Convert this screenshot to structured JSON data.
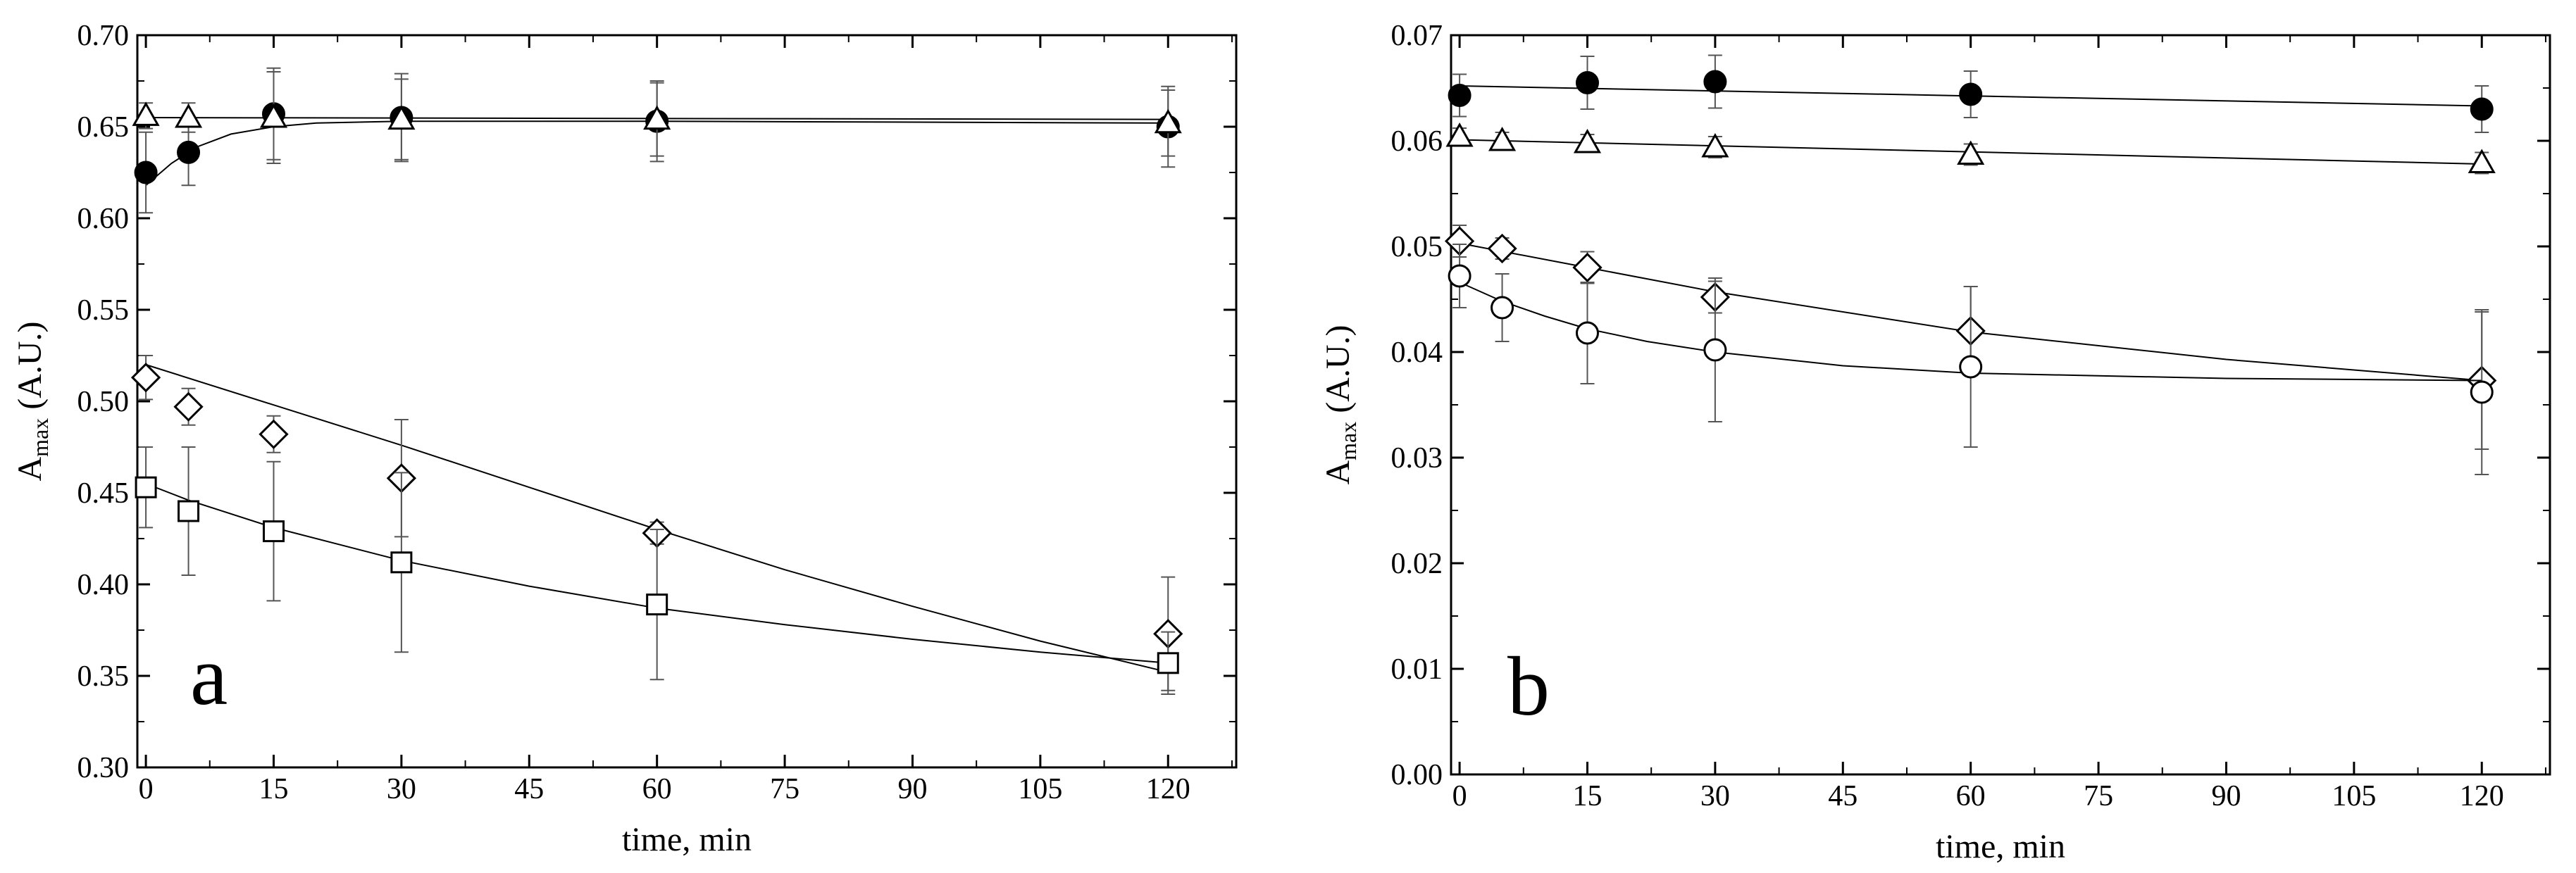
{
  "chart_data": [
    {
      "type": "scatter",
      "panel_label": "a",
      "xlabel": "time, min",
      "ylabel": "A",
      "ylabel_sub": "max",
      "ylabel_suffix": " (A.U.)",
      "xlim": [
        -1,
        128
      ],
      "ylim": [
        0.3,
        0.7
      ],
      "xticks": [
        0,
        15,
        30,
        45,
        60,
        75,
        90,
        105,
        120
      ],
      "yticks": [
        0.3,
        0.35,
        0.4,
        0.45,
        0.5,
        0.55,
        0.6,
        0.65,
        0.7
      ],
      "ytick_decimals": 2,
      "grid": false,
      "series": [
        {
          "marker": "filled-circle",
          "x": [
            0,
            5,
            15,
            30,
            60,
            120
          ],
          "y": [
            0.625,
            0.636,
            0.657,
            0.655,
            0.653,
            0.65
          ],
          "err": [
            0.022,
            0.018,
            0.025,
            0.024,
            0.022,
            0.022
          ],
          "fit": [
            [
              0,
              0.618
            ],
            [
              3,
              0.63
            ],
            [
              6,
              0.639
            ],
            [
              10,
              0.646
            ],
            [
              15,
              0.65
            ],
            [
              20,
              0.652
            ],
            [
              30,
              0.653
            ],
            [
              60,
              0.653
            ],
            [
              120,
              0.652
            ]
          ]
        },
        {
          "marker": "open-triangle",
          "x": [
            0,
            5,
            15,
            30,
            60,
            120
          ],
          "y": [
            0.656,
            0.655,
            0.655,
            0.654,
            0.654,
            0.652
          ],
          "err": [
            0.007,
            0.008,
            0.025,
            0.022,
            0.02,
            0.018
          ],
          "fit": [
            [
              0,
              0.655
            ],
            [
              120,
              0.654
            ]
          ]
        },
        {
          "marker": "open-diamond",
          "x": [
            0,
            5,
            15,
            30,
            60,
            120
          ],
          "y": [
            0.513,
            0.497,
            0.482,
            0.458,
            0.428,
            0.373
          ],
          "err": [
            0.012,
            0.01,
            0.01,
            0.032,
            0.006,
            0.031
          ],
          "fit": [
            [
              0,
              0.52
            ],
            [
              15,
              0.498
            ],
            [
              30,
              0.476
            ],
            [
              45,
              0.453
            ],
            [
              60,
              0.43
            ],
            [
              75,
              0.408
            ],
            [
              90,
              0.388
            ],
            [
              105,
              0.369
            ],
            [
              120,
              0.352
            ]
          ]
        },
        {
          "marker": "open-square",
          "x": [
            0,
            5,
            15,
            30,
            60,
            120
          ],
          "y": [
            0.453,
            0.44,
            0.429,
            0.412,
            0.389,
            0.357
          ],
          "err": [
            0.022,
            0.035,
            0.038,
            0.049,
            0.041,
            0.017
          ],
          "fit": [
            [
              0,
              0.455
            ],
            [
              5,
              0.446
            ],
            [
              15,
              0.431
            ],
            [
              30,
              0.413
            ],
            [
              45,
              0.399
            ],
            [
              60,
              0.387
            ],
            [
              75,
              0.378
            ],
            [
              90,
              0.37
            ],
            [
              105,
              0.363
            ],
            [
              120,
              0.357
            ]
          ]
        }
      ]
    },
    {
      "type": "scatter",
      "panel_label": "b",
      "xlabel": "time, min",
      "ylabel": "A",
      "ylabel_sub": "max",
      "ylabel_suffix": " (A.U.)",
      "xlim": [
        -1,
        128
      ],
      "ylim": [
        0.0,
        0.07
      ],
      "xticks": [
        0,
        15,
        30,
        45,
        60,
        75,
        90,
        105,
        120
      ],
      "yticks": [
        0.0,
        0.01,
        0.02,
        0.03,
        0.04,
        0.05,
        0.06,
        0.07
      ],
      "ytick_decimals": 2,
      "grid": false,
      "series": [
        {
          "marker": "filled-circle",
          "x": [
            0,
            15,
            30,
            60,
            120
          ],
          "y": [
            0.0643,
            0.0655,
            0.0656,
            0.0644,
            0.063
          ],
          "err": [
            0.002,
            0.0025,
            0.0025,
            0.0022,
            0.0022
          ],
          "fit": [
            [
              0,
              0.0652
            ],
            [
              120,
              0.0633
            ]
          ]
        },
        {
          "marker": "open-triangle",
          "x": [
            0,
            5,
            15,
            30,
            60,
            120
          ],
          "y": [
            0.0604,
            0.06,
            0.0598,
            0.0594,
            0.0587,
            0.0579
          ],
          "err": [
            0.0008,
            0.0008,
            0.0008,
            0.001,
            0.001,
            0.001
          ],
          "fit": [
            [
              0,
              0.0601
            ],
            [
              120,
              0.0578
            ]
          ]
        },
        {
          "marker": "open-diamond",
          "x": [
            0,
            5,
            15,
            30,
            60,
            120
          ],
          "y": [
            0.0505,
            0.0498,
            0.048,
            0.0452,
            0.042,
            0.0373
          ],
          "err": [
            0.0015,
            0.001,
            0.0015,
            0.0015,
            0.0042,
            0.0065
          ],
          "fit": [
            [
              0,
              0.0503
            ],
            [
              15,
              0.048
            ],
            [
              30,
              0.0457
            ],
            [
              60,
              0.0419
            ],
            [
              90,
              0.0393
            ],
            [
              120,
              0.0373
            ]
          ]
        },
        {
          "marker": "open-circle",
          "x": [
            0,
            5,
            15,
            30,
            60,
            120
          ],
          "y": [
            0.0472,
            0.0442,
            0.0418,
            0.0402,
            0.0386,
            0.0362
          ],
          "err": [
            0.003,
            0.0032,
            0.0048,
            0.0068,
            0.0076,
            0.0078
          ],
          "fit": [
            [
              0,
              0.0466
            ],
            [
              5,
              0.0448
            ],
            [
              10,
              0.0434
            ],
            [
              15,
              0.0422
            ],
            [
              22,
              0.041
            ],
            [
              30,
              0.04
            ],
            [
              45,
              0.0387
            ],
            [
              60,
              0.038
            ],
            [
              90,
              0.0375
            ],
            [
              120,
              0.0373
            ]
          ]
        }
      ]
    }
  ]
}
